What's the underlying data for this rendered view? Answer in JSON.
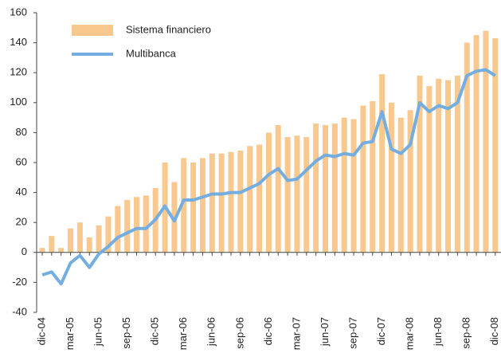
{
  "chart_data": {
    "type": "bar-line",
    "categories": [
      "dic-04",
      null,
      null,
      "mar-05",
      null,
      null,
      "jun-05",
      null,
      null,
      "sep-05",
      null,
      null,
      "dic-05",
      null,
      null,
      "mar-06",
      null,
      null,
      "jun-06",
      null,
      null,
      "sep-06",
      null,
      null,
      "dic-06",
      null,
      null,
      "mar-07",
      null,
      null,
      "jun-07",
      null,
      null,
      "sep-07",
      null,
      null,
      "dic-07",
      null,
      null,
      "mar-08",
      null,
      null,
      "jun-08",
      null,
      null,
      "sep-08",
      null,
      null,
      "dic-08"
    ],
    "series": [
      {
        "name": "Sistema financiero",
        "kind": "bar",
        "color": "#f9c88e",
        "values": [
          3,
          11,
          3,
          16,
          20,
          10,
          18,
          24,
          31,
          35,
          37,
          38,
          43,
          60,
          47,
          63,
          60,
          63,
          66,
          66,
          67,
          68,
          71,
          72,
          80,
          85,
          77,
          78,
          77,
          86,
          85,
          86,
          90,
          89,
          98,
          101,
          119,
          100,
          90,
          95,
          118,
          111,
          116,
          115,
          118,
          140,
          145,
          148,
          143
        ]
      },
      {
        "name": "Multibanca",
        "kind": "line",
        "color": "#74aee0",
        "values": [
          -15,
          -13,
          -21,
          -7,
          -2,
          -10,
          -1,
          4,
          10,
          13,
          16,
          16,
          22,
          31,
          21,
          35,
          35,
          37,
          39,
          39,
          40,
          40,
          43,
          46,
          52,
          56,
          48,
          49,
          55,
          61,
          65,
          64,
          66,
          65,
          73,
          74,
          94,
          69,
          66,
          72,
          100,
          94,
          98,
          96,
          100,
          118,
          121,
          122,
          118
        ]
      }
    ],
    "ylim": [
      -40,
      160
    ],
    "yticks": [
      -40,
      -20,
      0,
      20,
      40,
      60,
      80,
      100,
      120,
      140,
      160
    ]
  }
}
